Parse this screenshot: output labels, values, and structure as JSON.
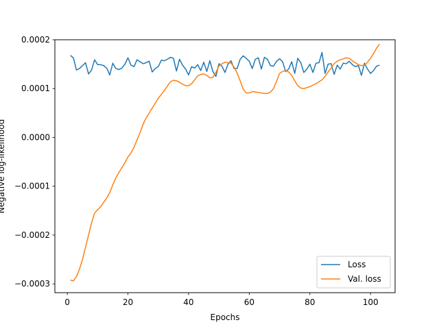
{
  "chart_data": {
    "type": "line",
    "xlabel": "Epochs",
    "ylabel": "Negative log-likelihood",
    "xlim": [
      -4.1,
      108.1
    ],
    "ylim": [
      -0.000318,
      0.0002
    ],
    "xticks": [
      0,
      20,
      40,
      60,
      80,
      100
    ],
    "xtick_labels": [
      "0",
      "20",
      "40",
      "60",
      "80",
      "100"
    ],
    "yticks": [
      -0.0003,
      -0.0002,
      -0.0001,
      0.0,
      0.0001,
      0.0002
    ],
    "ytick_labels": [
      "−0.0003",
      "−0.0002",
      "−0.0001",
      "0.0000",
      "0.0001",
      "0.0002"
    ],
    "grid": false,
    "legend_position": "lower-right",
    "x": [
      1,
      2,
      3,
      4,
      5,
      6,
      7,
      8,
      9,
      10,
      11,
      12,
      13,
      14,
      15,
      16,
      17,
      18,
      19,
      20,
      21,
      22,
      23,
      24,
      25,
      26,
      27,
      28,
      29,
      30,
      31,
      32,
      33,
      34,
      35,
      36,
      37,
      38,
      39,
      40,
      41,
      42,
      43,
      44,
      45,
      46,
      47,
      48,
      49,
      50,
      51,
      52,
      53,
      54,
      55,
      56,
      57,
      58,
      59,
      60,
      61,
      62,
      63,
      64,
      65,
      66,
      67,
      68,
      69,
      70,
      71,
      72,
      73,
      74,
      75,
      76,
      77,
      78,
      79,
      80,
      81,
      82,
      83,
      84,
      85,
      86,
      87,
      88,
      89,
      90,
      91,
      92,
      93,
      94,
      95,
      96,
      97,
      98,
      99,
      100,
      101,
      102,
      103
    ],
    "series": [
      {
        "name": "Loss",
        "color": "#1f77b4",
        "values": [
          0.000168,
          0.000163,
          0.000138,
          0.000141,
          0.000147,
          0.000153,
          0.00013,
          0.000138,
          0.000159,
          0.000149,
          0.000149,
          0.000147,
          0.000142,
          0.000128,
          0.000152,
          0.000141,
          0.000139,
          0.000142,
          0.00015,
          0.000163,
          0.000148,
          0.000145,
          0.000159,
          0.000155,
          0.000151,
          0.000153,
          0.000156,
          0.000134,
          0.000141,
          0.000145,
          0.000158,
          0.000157,
          0.00016,
          0.000164,
          0.000162,
          0.000136,
          0.00016,
          0.000148,
          0.00014,
          0.000128,
          0.000145,
          0.000142,
          0.000149,
          0.000137,
          0.000154,
          0.000135,
          0.000157,
          0.000135,
          0.000125,
          0.000151,
          0.000146,
          0.000133,
          0.00015,
          0.000157,
          0.000141,
          0.000141,
          0.00016,
          0.000167,
          0.000162,
          0.000156,
          0.000141,
          0.00016,
          0.000163,
          0.00014,
          0.000164,
          0.00016,
          0.000147,
          0.000146,
          0.000156,
          0.000161,
          0.000155,
          0.000135,
          0.00014,
          0.000155,
          0.000131,
          0.000162,
          0.000153,
          0.000133,
          0.00014,
          0.00015,
          0.000133,
          0.000152,
          0.000153,
          0.000174,
          0.000131,
          0.00015,
          0.000151,
          0.000129,
          0.000148,
          0.00014,
          0.000152,
          0.000151,
          0.000156,
          0.000149,
          0.000145,
          0.000147,
          0.000127,
          0.000152,
          0.00014,
          0.000131,
          0.000137,
          0.000146,
          0.000148
        ]
      },
      {
        "name": "Val. loss",
        "color": "#ff7f0e",
        "values": [
          -0.000292,
          -0.000294,
          -0.000285,
          -0.00027,
          -0.00025,
          -0.000225,
          -0.0002,
          -0.000175,
          -0.000155,
          -0.000148,
          -0.000142,
          -0.000133,
          -0.000124,
          -0.000113,
          -9.7e-05,
          -8.3e-05,
          -7.2e-05,
          -6.2e-05,
          -5.2e-05,
          -4e-05,
          -3.2e-05,
          -2e-05,
          -5e-06,
          1e-05,
          2.7e-05,
          4e-05,
          5e-05,
          6e-05,
          7e-05,
          8e-05,
          8.8e-05,
          9.6e-05,
          0.000105,
          0.000114,
          0.000117,
          0.000116,
          0.000113,
          0.000109,
          0.000106,
          0.000106,
          0.00011,
          0.000118,
          0.000126,
          0.000129,
          0.00013,
          0.000127,
          0.000122,
          0.000123,
          0.000133,
          0.000146,
          0.000151,
          0.000154,
          0.000153,
          0.000152,
          0.000144,
          0.000132,
          0.000116,
          9.9e-05,
          9.1e-05,
          9.1e-05,
          9.4e-05,
          9.3e-05,
          9.2e-05,
          9.1e-05,
          9e-05,
          9e-05,
          9.3e-05,
          0.0001,
          0.000115,
          0.000131,
          0.000135,
          0.000137,
          0.000134,
          0.000127,
          0.000116,
          0.000106,
          0.000101,
          0.0001,
          0.000102,
          0.000104,
          0.000107,
          0.00011,
          0.000114,
          0.000118,
          0.000125,
          0.000134,
          0.000142,
          0.000151,
          0.000156,
          0.000159,
          0.000161,
          0.000163,
          0.000162,
          0.000157,
          0.000153,
          0.000149,
          0.000147,
          0.000148,
          0.000154,
          0.000162,
          0.000172,
          0.000183,
          0.000191
        ]
      }
    ]
  }
}
